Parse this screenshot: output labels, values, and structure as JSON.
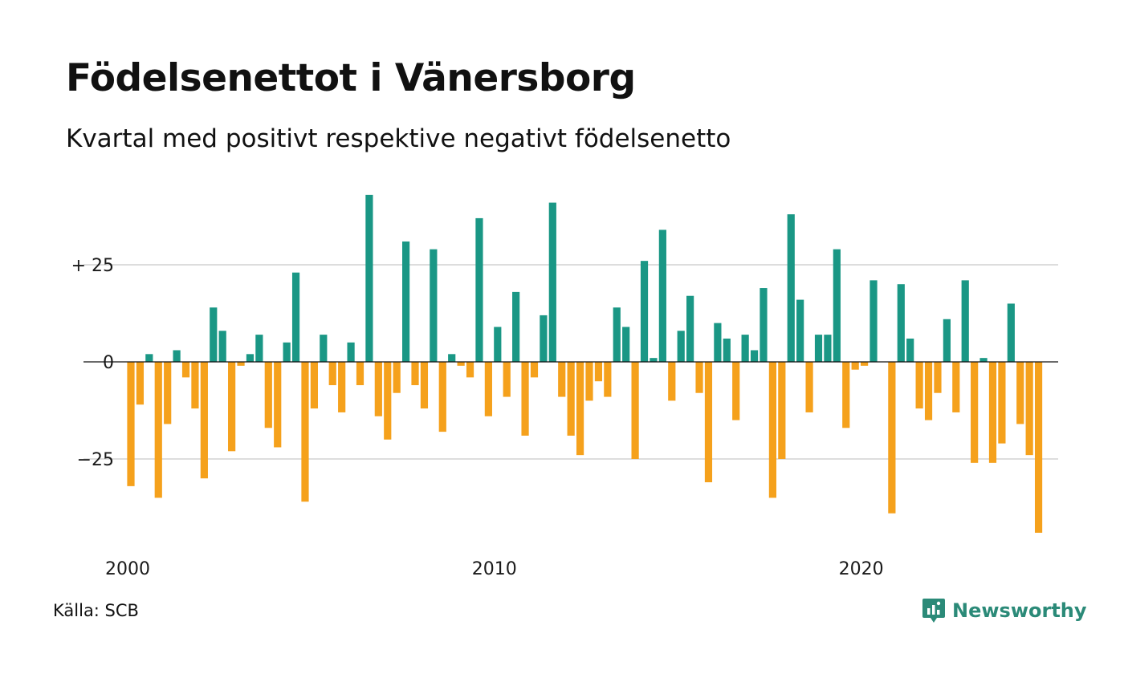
{
  "title": "Födelsenettot i Vänersborg",
  "subtitle": "Kvartal med positivt respektive negativt födelsenetto",
  "source": "Källa: SCB",
  "brand": "Newsworthy",
  "brand_icon": "newsworthy-logo-icon",
  "colors": {
    "positive": "#1a9785",
    "negative": "#f5a11c",
    "grid": "#dddddd",
    "zero": "#111111",
    "brand": "#2b8a78"
  },
  "chart_data": {
    "type": "bar",
    "x_start": "2000 Q1",
    "x_tick_labels": [
      "2000",
      "2010",
      "2020"
    ],
    "y_tick_labels": [
      "+ 25",
      "0",
      "−25"
    ],
    "y_ticks": [
      25,
      0,
      -25
    ],
    "ylim": [
      -46,
      44
    ],
    "grid": true,
    "values": [
      -32,
      -11,
      2,
      -35,
      -16,
      3,
      -4,
      -12,
      -30,
      14,
      8,
      -23,
      -1,
      2,
      7,
      -17,
      -22,
      5,
      23,
      -36,
      -12,
      7,
      -6,
      -13,
      5,
      -6,
      43,
      -14,
      -20,
      -8,
      31,
      -6,
      -12,
      29,
      -18,
      2,
      -1,
      -4,
      37,
      -14,
      9,
      -9,
      18,
      -19,
      -4,
      12,
      41,
      -9,
      -19,
      -24,
      -10,
      -5,
      -9,
      14,
      9,
      -25,
      26,
      1,
      34,
      -10,
      8,
      17,
      -8,
      -31,
      10,
      6,
      -15,
      7,
      3,
      19,
      -35,
      -25,
      38,
      16,
      -13,
      7,
      7,
      29,
      -17,
      -2,
      -1,
      21,
      0,
      -39,
      20,
      6,
      -12,
      -15,
      -8,
      11,
      -13,
      21,
      -26,
      1,
      -26,
      -21,
      15,
      -16,
      -24,
      -44
    ]
  }
}
